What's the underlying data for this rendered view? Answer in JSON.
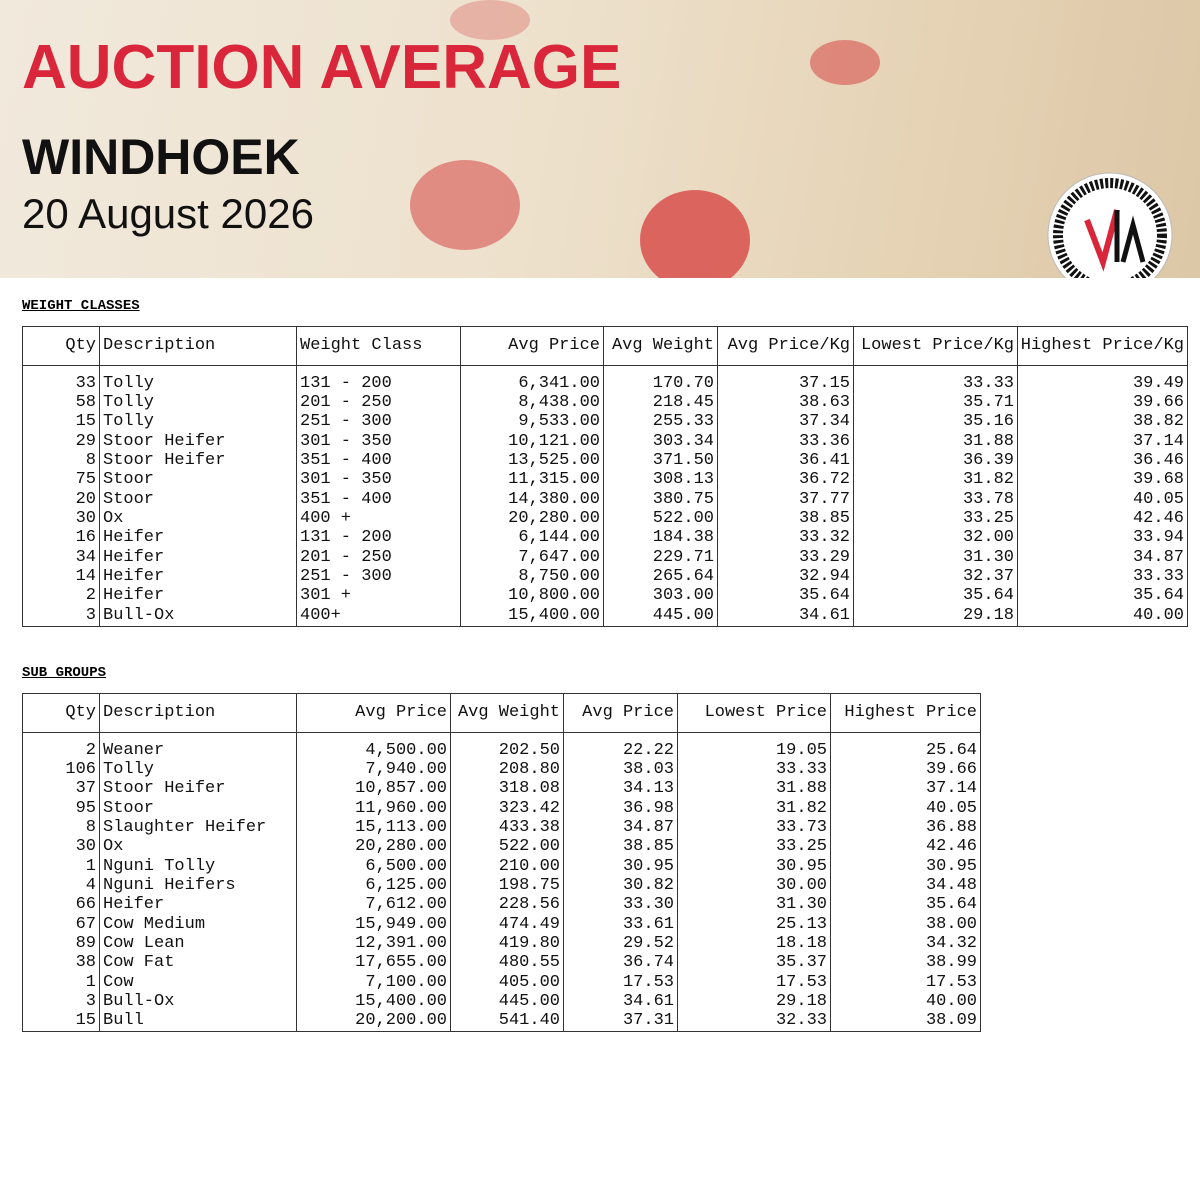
{
  "header": {
    "title": "AUCTION AVERAGE",
    "location": "WINDHOEK",
    "date": "20 August 2026"
  },
  "weight_classes": {
    "heading": "WEIGHT CLASSES",
    "columns": [
      "Qty",
      "Description",
      "Weight Class",
      "Avg Price",
      "Avg Weight",
      "Avg Price/Kg",
      "Lowest Price/Kg",
      "Highest Price/Kg"
    ],
    "rows": [
      [
        "33",
        "Tolly",
        "131 - 200",
        "6,341.00",
        "170.70",
        "37.15",
        "33.33",
        "39.49"
      ],
      [
        "58",
        "Tolly",
        "201 - 250",
        "8,438.00",
        "218.45",
        "38.63",
        "35.71",
        "39.66"
      ],
      [
        "15",
        "Tolly",
        "251 - 300",
        "9,533.00",
        "255.33",
        "37.34",
        "35.16",
        "38.82"
      ],
      [
        "29",
        "Stoor Heifer",
        "301 - 350",
        "10,121.00",
        "303.34",
        "33.36",
        "31.88",
        "37.14"
      ],
      [
        "8",
        "Stoor Heifer",
        "351 - 400",
        "13,525.00",
        "371.50",
        "36.41",
        "36.39",
        "36.46"
      ],
      [
        "75",
        "Stoor",
        "301 - 350",
        "11,315.00",
        "308.13",
        "36.72",
        "31.82",
        "39.68"
      ],
      [
        "20",
        "Stoor",
        "351 - 400",
        "14,380.00",
        "380.75",
        "37.77",
        "33.78",
        "40.05"
      ],
      [
        "30",
        "Ox",
        "400 +",
        "20,280.00",
        "522.00",
        "38.85",
        "33.25",
        "42.46"
      ],
      [
        "16",
        "Heifer",
        "131 - 200",
        "6,144.00",
        "184.38",
        "33.32",
        "32.00",
        "33.94"
      ],
      [
        "34",
        "Heifer",
        "201 - 250",
        "7,647.00",
        "229.71",
        "33.29",
        "31.30",
        "34.87"
      ],
      [
        "14",
        "Heifer",
        "251 - 300",
        "8,750.00",
        "265.64",
        "32.94",
        "32.37",
        "33.33"
      ],
      [
        "2",
        "Heifer",
        "301 +",
        "10,800.00",
        "303.00",
        "35.64",
        "35.64",
        "35.64"
      ],
      [
        "3",
        "Bull-Ox",
        "400+",
        "15,400.00",
        "445.00",
        "34.61",
        "29.18",
        "40.00"
      ]
    ]
  },
  "sub_groups": {
    "heading": "SUB GROUPS",
    "columns": [
      "Qty",
      "Description",
      "Avg Price",
      "Avg Weight",
      "Avg Price",
      "Lowest Price",
      "Highest Price"
    ],
    "rows": [
      [
        "2",
        "Weaner",
        "4,500.00",
        "202.50",
        "22.22",
        "19.05",
        "25.64"
      ],
      [
        "106",
        "Tolly",
        "7,940.00",
        "208.80",
        "38.03",
        "33.33",
        "39.66"
      ],
      [
        "37",
        "Stoor Heifer",
        "10,857.00",
        "318.08",
        "34.13",
        "31.88",
        "37.14"
      ],
      [
        "95",
        "Stoor",
        "11,960.00",
        "323.42",
        "36.98",
        "31.82",
        "40.05"
      ],
      [
        "8",
        "Slaughter Heifer",
        "15,113.00",
        "433.38",
        "34.87",
        "33.73",
        "36.88"
      ],
      [
        "30",
        "Ox",
        "20,280.00",
        "522.00",
        "38.85",
        "33.25",
        "42.46"
      ],
      [
        "1",
        "Nguni Tolly",
        "6,500.00",
        "210.00",
        "30.95",
        "30.95",
        "30.95"
      ],
      [
        "4",
        "Nguni Heifers",
        "6,125.00",
        "198.75",
        "30.82",
        "30.00",
        "34.48"
      ],
      [
        "66",
        "Heifer",
        "7,612.00",
        "228.56",
        "33.30",
        "31.30",
        "35.64"
      ],
      [
        "67",
        "Cow Medium",
        "15,949.00",
        "474.49",
        "33.61",
        "25.13",
        "38.00"
      ],
      [
        "89",
        "Cow Lean",
        "12,391.00",
        "419.80",
        "29.52",
        "18.18",
        "34.32"
      ],
      [
        "38",
        "Cow Fat",
        "17,655.00",
        "480.55",
        "36.74",
        "35.37",
        "38.99"
      ],
      [
        "1",
        "Cow",
        "7,100.00",
        "405.00",
        "17.53",
        "17.53",
        "17.53"
      ],
      [
        "3",
        "Bull-Ox",
        "15,400.00",
        "445.00",
        "34.61",
        "29.18",
        "40.00"
      ],
      [
        "15",
        "Bull",
        "20,200.00",
        "541.40",
        "37.31",
        "32.33",
        "38.09"
      ]
    ]
  }
}
